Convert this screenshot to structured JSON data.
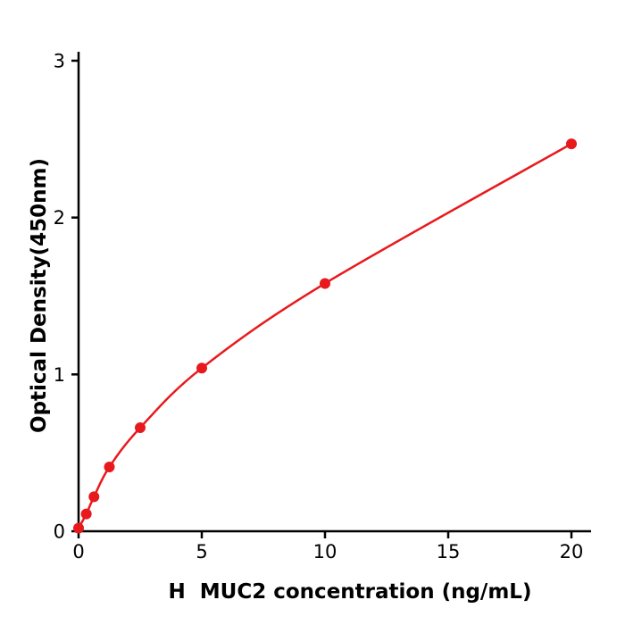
{
  "chart_data": {
    "type": "scatter",
    "title": "",
    "xlabel": "H  MUC2 concentration (ng/mL)",
    "ylabel": "Optical Density(450nm)",
    "x": [
      0,
      0.313,
      0.625,
      1.25,
      2.5,
      5,
      10,
      20
    ],
    "y": [
      0.02,
      0.11,
      0.22,
      0.41,
      0.66,
      1.04,
      1.58,
      2.47
    ],
    "xlim": [
      0,
      20.8
    ],
    "ylim": [
      0,
      3
    ],
    "xticks": [
      0,
      5,
      10,
      15,
      20
    ],
    "yticks": [
      0,
      1,
      2,
      3
    ],
    "curve": "smooth monotonic fit through all data points",
    "point_color": "#e8191c",
    "line_color": "#e8191c",
    "axis_color": "#000000",
    "background_color": "#ffffff",
    "grid": false,
    "legend": null
  }
}
